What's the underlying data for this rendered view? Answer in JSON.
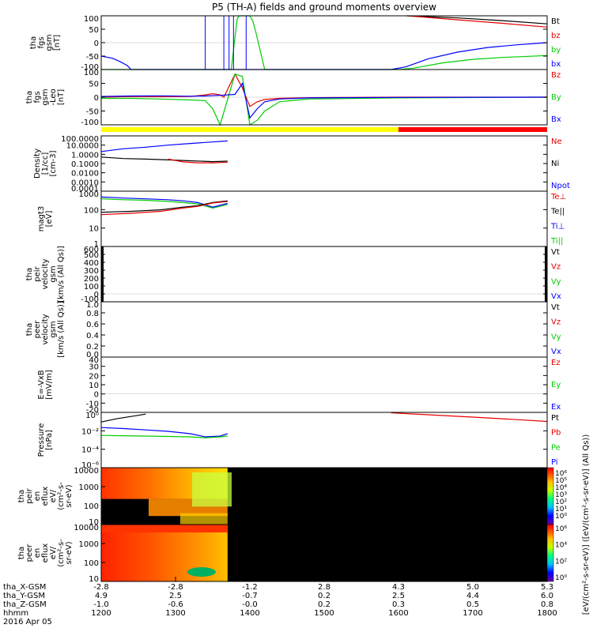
{
  "title": "P5 (TH-A) fields and ground moments overview",
  "colors": {
    "black": "#000000",
    "red": "#e60000",
    "green": "#00cc00",
    "blue": "#0000ff",
    "yellow": "#ffff00",
    "darkred": "#ff0000"
  },
  "chart_data": [
    {
      "id": "fgs",
      "type": "line",
      "ylabel_lines": [
        "tha",
        "fgs",
        "gsm",
        "[nT]"
      ],
      "ylim": [
        -100,
        100
      ],
      "yticks": [
        "100",
        "50",
        "0",
        "-50",
        "-100"
      ],
      "legend": [
        "Bt",
        "bz",
        "by",
        "bx"
      ],
      "series": [
        {
          "name": "Bt",
          "x": [
            1611,
            1680,
            1740,
            1800
          ],
          "y": [
            100,
            92,
            82,
            70
          ]
        },
        {
          "name": "bz",
          "x": [
            1612,
            1680,
            1740,
            1800
          ],
          "y": [
            100,
            85,
            72,
            58
          ]
        },
        {
          "name": "by",
          "x": [
            1200,
            1230,
            1260,
            1290,
            1320,
            1360,
            1375,
            1380,
            1383,
            1386,
            1390,
            1400,
            1404,
            1408,
            1420,
            1600,
            1620,
            1660,
            1700,
            1740,
            1800
          ],
          "y": [
            -100,
            -100,
            -100,
            -100,
            -100,
            -100,
            -100,
            20,
            90,
            100,
            100,
            100,
            80,
            40,
            -100,
            -100,
            -95,
            -75,
            -62,
            -55,
            -48
          ]
        },
        {
          "name": "bx",
          "x": [
            1200,
            1215,
            1225,
            1235,
            1240,
            1590,
            1610,
            1640,
            1680,
            1720,
            1760,
            1800
          ],
          "y": [
            -50,
            -58,
            -70,
            -85,
            -100,
            -100,
            -90,
            -60,
            -35,
            -18,
            -8,
            0
          ]
        }
      ]
    },
    {
      "id": "fgs_leo",
      "type": "line",
      "ylabel_lines": [
        "tha",
        "fgs",
        "gsm",
        "-Leo",
        "[nT]"
      ],
      "ylim": [
        -120,
        120
      ],
      "yticks": [
        "100",
        "50",
        "0",
        "-50",
        "-100"
      ],
      "legend": [
        "Bz",
        "By",
        "Bx"
      ],
      "series": [
        {
          "name": "Bz",
          "x": [
            1200,
            1240,
            1280,
            1320,
            1340,
            1350,
            1360,
            1365,
            1380,
            1390,
            1400,
            1410,
            1420,
            1440,
            1480,
            1600,
            1800
          ],
          "y": [
            0,
            3,
            2,
            3,
            10,
            15,
            10,
            0,
            100,
            40,
            -40,
            -20,
            -10,
            -5,
            -2,
            0,
            0
          ]
        },
        {
          "name": "By",
          "x": [
            1200,
            1240,
            1280,
            1320,
            1340,
            1350,
            1360,
            1380,
            1390,
            1400,
            1410,
            1420,
            1440,
            1480,
            1600,
            1800
          ],
          "y": [
            -5,
            -5,
            -8,
            -12,
            -15,
            -50,
            -120,
            100,
            90,
            -120,
            -100,
            -60,
            -20,
            -8,
            -3,
            0
          ]
        },
        {
          "name": "Bx",
          "x": [
            1200,
            1240,
            1280,
            1320,
            1340,
            1360,
            1380,
            1390,
            1400,
            1410,
            1420,
            1440,
            1480,
            1600,
            1800
          ],
          "y": [
            3,
            5,
            6,
            4,
            5,
            8,
            12,
            60,
            -90,
            -50,
            -20,
            -8,
            -3,
            -1,
            0
          ]
        }
      ],
      "bar": [
        {
          "from": 1200,
          "to": 1600,
          "color": "yellow"
        },
        {
          "from": 1600,
          "to": 1800,
          "color": "darkred"
        }
      ]
    },
    {
      "id": "density",
      "type": "line",
      "yscale": "log",
      "ylabel_lines": [
        "Density",
        "[1/cc]",
        "[cm-3]"
      ],
      "ylim": [
        0.0001,
        100
      ],
      "yticks": [
        "100.0000",
        "10.0000",
        "1.0000",
        "0.1000",
        "0.0100",
        "0.0010",
        "0.0001"
      ],
      "legend": [
        "Ne",
        "Ni",
        "Npot"
      ],
      "series": [
        {
          "name": "Npot",
          "x": [
            1200,
            1230,
            1260,
            1290,
            1320,
            1350,
            1370
          ],
          "y": [
            2,
            4,
            6,
            10,
            15,
            22,
            28
          ]
        },
        {
          "name": "Ni",
          "x": [
            1200,
            1230,
            1260,
            1290,
            1320,
            1350,
            1370
          ],
          "y": [
            0.5,
            0.35,
            0.3,
            0.25,
            0.2,
            0.16,
            0.18
          ]
        },
        {
          "name": "Ne",
          "x": [
            1290,
            1310,
            1330,
            1350,
            1370
          ],
          "y": [
            0.3,
            0.15,
            0.12,
            0.12,
            0.14
          ]
        }
      ]
    },
    {
      "id": "temp",
      "type": "line",
      "yscale": "log",
      "ylabel_lines": [
        "magt3",
        "[eV]"
      ],
      "ylim": [
        1,
        10000
      ],
      "yticks": [
        "1000",
        "100",
        "10",
        "1"
      ],
      "legend": [
        "Te⊥",
        "Te||",
        "Ti⊥",
        "Ti||"
      ],
      "series": [
        {
          "name": "Ti||",
          "x": [
            1200,
            1230,
            1260,
            1290,
            1310,
            1330,
            1350,
            1370
          ],
          "y": [
            2800,
            2400,
            2200,
            1800,
            1500,
            1200,
            600,
            1100
          ]
        },
        {
          "name": "Ti⊥",
          "x": [
            1200,
            1230,
            1260,
            1290,
            1310,
            1330,
            1350,
            1370
          ],
          "y": [
            3800,
            3200,
            2800,
            2400,
            2000,
            1500,
            700,
            1300
          ]
        },
        {
          "name": "Te||",
          "x": [
            1200,
            1240,
            1280,
            1310,
            1330,
            1350,
            1370
          ],
          "y": [
            300,
            350,
            450,
            700,
            900,
            1500,
            2000
          ]
        },
        {
          "name": "Te⊥",
          "x": [
            1200,
            1240,
            1280,
            1310,
            1330,
            1350,
            1370
          ],
          "y": [
            200,
            250,
            350,
            600,
            800,
            1400,
            1800
          ]
        }
      ]
    },
    {
      "id": "peir_vel",
      "type": "line",
      "ylabel_lines": [
        "tha",
        "peir",
        "velocity",
        "gsm",
        "[km/s (All Qs)]"
      ],
      "ylim": [
        -100,
        600
      ],
      "yticks": [
        "600",
        "500",
        "400",
        "300",
        "200",
        "100",
        "0",
        "-100"
      ],
      "legend": [
        "Vt",
        "Vz",
        "Vy",
        "Vx"
      ],
      "series": []
    },
    {
      "id": "peer_vel",
      "type": "line",
      "ylabel_lines": [
        "tha",
        "peer",
        "velocity",
        "gsm",
        "[km/s (All Qs)]"
      ],
      "ylim": [
        0,
        1
      ],
      "yticks": [
        "1.0",
        "0.8",
        "0.6",
        "0.4",
        "0.2",
        "0.0"
      ],
      "legend": [
        "Vt",
        "Vz",
        "Vy",
        "Vx"
      ],
      "series": []
    },
    {
      "id": "efield",
      "type": "line",
      "ylabel_lines": [
        "E=-VxB",
        "[mV/m]"
      ],
      "ylim": [
        -20,
        40
      ],
      "yticks": [
        "40",
        "30",
        "20",
        "10",
        "0",
        "-10",
        "-20"
      ],
      "legend": [
        "Ez",
        "Ey",
        "Ex"
      ],
      "series": []
    },
    {
      "id": "pressure",
      "type": "line",
      "yscale": "log",
      "ylabel_lines": [
        "Pressure",
        "[nPa]"
      ],
      "ylim": [
        1e-06,
        10
      ],
      "yticks": [
        "10⁰",
        "10⁻²",
        "10⁻⁴",
        "10⁻⁶"
      ],
      "legend": [
        "Pt",
        "Pb",
        "Pe",
        "Pi"
      ],
      "series": [
        {
          "name": "Pt",
          "x": [
            1200,
            1220,
            1240,
            1260
          ],
          "y": [
            0.6,
            1.5,
            3,
            6
          ]
        },
        {
          "name": "Pb",
          "x": [
            1590,
            1640,
            1700,
            1760,
            1800
          ],
          "y": [
            9,
            5,
            2.5,
            1.2,
            0.7
          ]
        },
        {
          "name": "Pi",
          "x": [
            1200,
            1230,
            1260,
            1290,
            1320,
            1340,
            1360,
            1370
          ],
          "y": [
            0.12,
            0.09,
            0.06,
            0.04,
            0.02,
            0.008,
            0.01,
            0.02
          ]
        },
        {
          "name": "Pe",
          "x": [
            1200,
            1230,
            1260,
            1290,
            1320,
            1340,
            1360,
            1370
          ],
          "y": [
            0.012,
            0.011,
            0.01,
            0.009,
            0.008,
            0.006,
            0.008,
            0.01
          ]
        }
      ]
    },
    {
      "id": "peir_eflux",
      "type": "heatmap",
      "ylabel_lines": [
        "tha",
        "peir",
        "en",
        "eflux",
        "eV/",
        "(cm²-s-",
        "sr-eV)"
      ],
      "yticks": [
        "10000",
        "1000",
        "100",
        "10"
      ]
    },
    {
      "id": "peer_eflux",
      "type": "heatmap",
      "ylabel_lines": [
        "tha",
        "peer",
        "en",
        "eflux",
        "eV/",
        "(cm²-s-",
        "sr-eV)"
      ],
      "yticks": [
        "10000",
        "1000",
        "100",
        "10"
      ]
    }
  ],
  "colorbar": {
    "label": "[eV/(cm²-s-sr-eV)] ([eV/(cm²-s-sr-eV)] (All Qs))",
    "ticks_top": [
      "10⁶",
      "10⁵",
      "10⁴",
      "10³",
      "10²",
      "10¹",
      "10⁰"
    ],
    "ticks_bottom": [
      "10⁶",
      "10⁴",
      "10²",
      "10⁰"
    ]
  },
  "xaxis": {
    "tick_values": [
      1200,
      1300,
      1400,
      1500,
      1600,
      1700,
      1800
    ],
    "rows": [
      {
        "label": "tha_X-GSM",
        "values": [
          "-2.8",
          "-2.8",
          "-1.2",
          "2.8",
          "4.3",
          "5.0",
          "5.3"
        ]
      },
      {
        "label": "tha_Y-GSM",
        "values": [
          "4.9",
          "2.5",
          "-0.7",
          "0.2",
          "2.5",
          "4.4",
          "6.0"
        ]
      },
      {
        "label": "tha_Z-GSM",
        "values": [
          "-1.0",
          "-0.6",
          "-0.0",
          "0.2",
          "0.3",
          "0.5",
          "0.8"
        ]
      },
      {
        "label": "hhmm",
        "values": [
          "1200",
          "1300",
          "1400",
          "1500",
          "1600",
          "1700",
          "1800"
        ]
      }
    ],
    "date": "2016 Apr 05"
  }
}
